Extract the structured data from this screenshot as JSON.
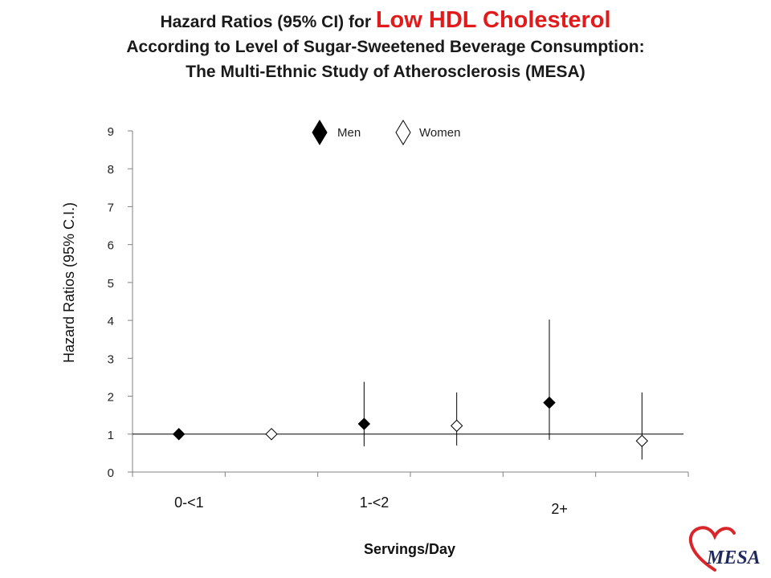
{
  "title": {
    "line1_prefix": "Hazard Ratios (95% CI) for ",
    "line1_highlight": "Low HDL Cholesterol",
    "line2": "According to Level of Sugar-Sweetened Beverage Consumption:",
    "line3": "The Multi-Ethnic Study of Atherosclerosis (MESA)"
  },
  "colors": {
    "highlight": "#e11b1b",
    "logo_red": "#d9262b",
    "logo_navy": "#1f2a5c"
  },
  "logo": {
    "text": "MESA",
    "icon": "heart-icon"
  },
  "chart_data": {
    "type": "scatter",
    "title": "Hazard Ratios (95% CI) for Low HDL Cholesterol According to Level of Sugar-Sweetened Beverage Consumption: The Multi-Ethnic Study of Atherosclerosis (MESA)",
    "xlabel": "Servings/Day",
    "ylabel": "Hazard Ratios (95% C.I.)",
    "ylim": [
      0,
      9
    ],
    "yticks": [
      0,
      1,
      2,
      3,
      4,
      5,
      6,
      7,
      8,
      9
    ],
    "categories": [
      "0-<1",
      "1-<2",
      "2+"
    ],
    "reference_line": 1,
    "legend_position": "top-center",
    "series": [
      {
        "name": "Men",
        "marker": "filled-diamond",
        "points": [
          {
            "category": "0-<1",
            "hr": 1.0,
            "lower": null,
            "upper": null
          },
          {
            "category": "1-<2",
            "hr": 1.27,
            "lower": 0.68,
            "upper": 2.38
          },
          {
            "category": "2+",
            "hr": 1.83,
            "lower": 0.85,
            "upper": 4.02
          }
        ]
      },
      {
        "name": "Women",
        "marker": "open-diamond",
        "points": [
          {
            "category": "0-<1",
            "hr": 1.0,
            "lower": null,
            "upper": null
          },
          {
            "category": "1-<2",
            "hr": 1.22,
            "lower": 0.7,
            "upper": 2.1
          },
          {
            "category": "2+",
            "hr": 0.82,
            "lower": 0.33,
            "upper": 2.1
          }
        ]
      }
    ]
  }
}
